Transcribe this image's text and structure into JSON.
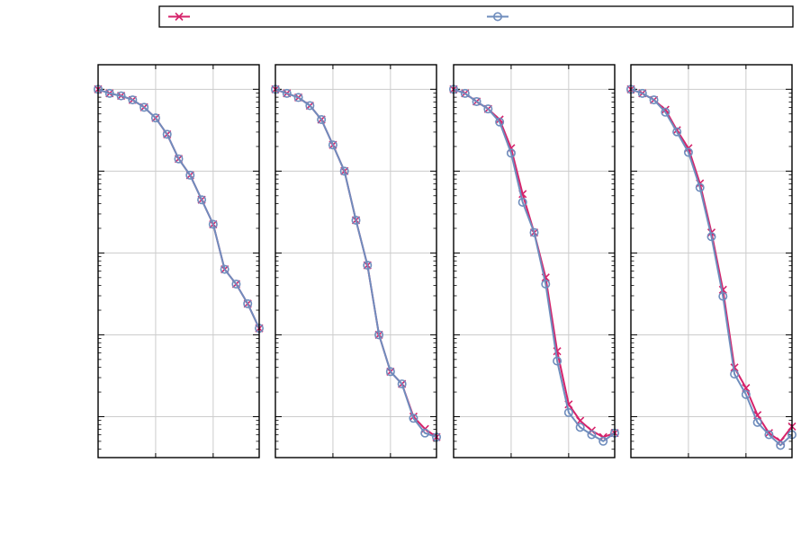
{
  "legend": {
    "placement": "top",
    "entries": [
      {
        "name": "",
        "marker": "x-cross",
        "color": "#d6236b"
      },
      {
        "name": "",
        "marker": "open-circle",
        "color": "#6f8dbd"
      }
    ]
  },
  "colors": {
    "series_a": "#d6236b",
    "series_b": "#6f8dbd",
    "grid": "#cccccc",
    "frame": "#000000"
  },
  "chart_data": [
    {
      "type": "line",
      "y_scale": "log",
      "ylim_log10": [
        -4.5,
        0.3
      ],
      "grid": true,
      "x_ticks": 2,
      "series": [
        {
          "values_log10": [
            0.0,
            -0.05,
            -0.08,
            -0.13,
            -0.22,
            -0.35,
            -0.55,
            -0.85,
            -1.05,
            -1.35,
            -1.65,
            -2.2,
            -2.38,
            -2.62,
            -2.92
          ]
        },
        {
          "values_log10": [
            0.0,
            -0.05,
            -0.08,
            -0.13,
            -0.22,
            -0.35,
            -0.55,
            -0.85,
            -1.05,
            -1.35,
            -1.65,
            -2.2,
            -2.38,
            -2.62,
            -2.92
          ]
        }
      ]
    },
    {
      "type": "line",
      "y_scale": "log",
      "ylim_log10": [
        -4.5,
        0.3
      ],
      "grid": true,
      "x_ticks": 2,
      "series": [
        {
          "values_log10": [
            0.0,
            -0.05,
            -0.1,
            -0.2,
            -0.37,
            -0.68,
            -1.0,
            -1.6,
            -2.15,
            -3.0,
            -3.45,
            -3.6,
            -4.0,
            -4.15,
            -4.25
          ]
        },
        {
          "values_log10": [
            0.0,
            -0.05,
            -0.1,
            -0.2,
            -0.37,
            -0.68,
            -1.0,
            -1.6,
            -2.15,
            -3.0,
            -3.45,
            -3.6,
            -4.02,
            -4.2,
            -4.25
          ]
        }
      ]
    },
    {
      "type": "line",
      "y_scale": "log",
      "ylim_log10": [
        -4.5,
        0.3
      ],
      "grid": true,
      "x_ticks": 2,
      "series": [
        {
          "values_log10": [
            0.0,
            -0.05,
            -0.15,
            -0.24,
            -0.37,
            -0.72,
            -1.28,
            -1.75,
            -2.3,
            -3.2,
            -3.85,
            -4.05,
            -4.17,
            -4.25,
            -4.2
          ]
        },
        {
          "values_log10": [
            0.0,
            -0.05,
            -0.15,
            -0.24,
            -0.4,
            -0.78,
            -1.38,
            -1.75,
            -2.38,
            -3.32,
            -3.95,
            -4.13,
            -4.22,
            -4.3,
            -4.2
          ]
        }
      ]
    },
    {
      "type": "line",
      "y_scale": "log",
      "ylim_log10": [
        -4.5,
        0.3
      ],
      "grid": true,
      "x_ticks": 2,
      "series": [
        {
          "values_log10": [
            0.0,
            -0.05,
            -0.13,
            -0.25,
            -0.5,
            -0.72,
            -1.15,
            -1.75,
            -2.45,
            -3.4,
            -3.65,
            -3.98,
            -4.2,
            -4.3,
            -4.12
          ]
        },
        {
          "values_log10": [
            0.0,
            -0.05,
            -0.13,
            -0.28,
            -0.52,
            -0.77,
            -1.2,
            -1.8,
            -2.53,
            -3.48,
            -3.73,
            -4.07,
            -4.22,
            -4.35,
            -4.22
          ]
        }
      ]
    }
  ]
}
